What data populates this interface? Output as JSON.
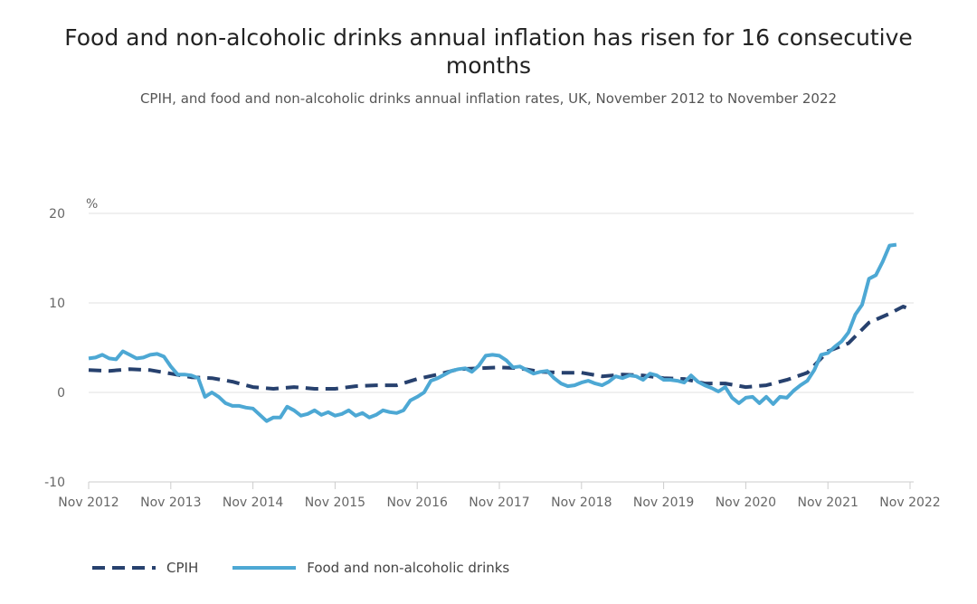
{
  "title": "Food and non-alcoholic drinks annual inflation has risen for 16 consecutive months",
  "subtitle": "CPIH, and food and non-alcoholic drinks annual inflation rates, UK, November 2012 to November 2022",
  "chart_data": {
    "type": "line",
    "y_unit_label": "%",
    "ylim": [
      -10,
      20
    ],
    "y_ticks": [
      "20",
      "10",
      "0",
      "-10"
    ],
    "x_ticks": [
      "Nov 2012",
      "Nov 2013",
      "Nov 2014",
      "Nov 2015",
      "Nov 2016",
      "Nov 2017",
      "Nov 2018",
      "Nov 2019",
      "Nov 2020",
      "Nov 2021",
      "Nov 2022"
    ],
    "x_start": "Nov 2012",
    "x_end": "Nov 2022",
    "grid": true,
    "legend_position": "bottom-left",
    "series": [
      {
        "name": "CPIH",
        "style": "dashed",
        "color": "#27416e",
        "values": [
          [
            0,
            2.5
          ],
          [
            3,
            2.4
          ],
          [
            6,
            2.6
          ],
          [
            9,
            2.5
          ],
          [
            12,
            2.1
          ],
          [
            15,
            1.7
          ],
          [
            18,
            1.6
          ],
          [
            21,
            1.2
          ],
          [
            24,
            0.6
          ],
          [
            27,
            0.4
          ],
          [
            30,
            0.6
          ],
          [
            33,
            0.4
          ],
          [
            36,
            0.4
          ],
          [
            39,
            0.7
          ],
          [
            42,
            0.8
          ],
          [
            45,
            0.8
          ],
          [
            48,
            1.5
          ],
          [
            51,
            2.0
          ],
          [
            54,
            2.6
          ],
          [
            57,
            2.7
          ],
          [
            60,
            2.8
          ],
          [
            63,
            2.7
          ],
          [
            66,
            2.3
          ],
          [
            69,
            2.2
          ],
          [
            72,
            2.2
          ],
          [
            75,
            1.8
          ],
          [
            78,
            2.0
          ],
          [
            81,
            1.9
          ],
          [
            84,
            1.6
          ],
          [
            87,
            1.5
          ],
          [
            90,
            1.0
          ],
          [
            93,
            1.0
          ],
          [
            96,
            0.6
          ],
          [
            99,
            0.8
          ],
          [
            102,
            1.4
          ],
          [
            105,
            2.2
          ],
          [
            108,
            4.6
          ],
          [
            111,
            5.5
          ],
          [
            114,
            7.8
          ],
          [
            117,
            8.8
          ],
          [
            119,
            9.6
          ],
          [
            120,
            9.3
          ]
        ]
      },
      {
        "name": "Food and non-alcoholic drinks",
        "style": "solid",
        "color": "#4da8d4",
        "values": [
          [
            0,
            3.8
          ],
          [
            1,
            3.9
          ],
          [
            2,
            4.2
          ],
          [
            3,
            3.8
          ],
          [
            4,
            3.7
          ],
          [
            5,
            4.6
          ],
          [
            6,
            4.2
          ],
          [
            7,
            3.8
          ],
          [
            8,
            3.9
          ],
          [
            9,
            4.2
          ],
          [
            10,
            4.3
          ],
          [
            11,
            4.0
          ],
          [
            12,
            2.9
          ],
          [
            13,
            2.0
          ],
          [
            14,
            2.0
          ],
          [
            15,
            1.9
          ],
          [
            16,
            1.6
          ],
          [
            17,
            -0.5
          ],
          [
            18,
            0.0
          ],
          [
            19,
            -0.5
          ],
          [
            20,
            -1.2
          ],
          [
            21,
            -1.5
          ],
          [
            22,
            -1.5
          ],
          [
            23,
            -1.7
          ],
          [
            24,
            -1.8
          ],
          [
            25,
            -2.5
          ],
          [
            26,
            -3.2
          ],
          [
            27,
            -2.8
          ],
          [
            28,
            -2.8
          ],
          [
            29,
            -1.6
          ],
          [
            30,
            -2.0
          ],
          [
            31,
            -2.6
          ],
          [
            32,
            -2.4
          ],
          [
            33,
            -2.0
          ],
          [
            34,
            -2.5
          ],
          [
            35,
            -2.2
          ],
          [
            36,
            -2.6
          ],
          [
            37,
            -2.4
          ],
          [
            38,
            -2.0
          ],
          [
            39,
            -2.6
          ],
          [
            40,
            -2.3
          ],
          [
            41,
            -2.8
          ],
          [
            42,
            -2.5
          ],
          [
            43,
            -2.0
          ],
          [
            44,
            -2.2
          ],
          [
            45,
            -2.3
          ],
          [
            46,
            -2.0
          ],
          [
            47,
            -0.9
          ],
          [
            48,
            -0.5
          ],
          [
            49,
            0.0
          ],
          [
            50,
            1.3
          ],
          [
            51,
            1.6
          ],
          [
            52,
            2.0
          ],
          [
            53,
            2.4
          ],
          [
            54,
            2.6
          ],
          [
            55,
            2.7
          ],
          [
            56,
            2.3
          ],
          [
            57,
            3.0
          ],
          [
            58,
            4.1
          ],
          [
            59,
            4.2
          ],
          [
            60,
            4.1
          ],
          [
            61,
            3.6
          ],
          [
            62,
            2.8
          ],
          [
            63,
            2.9
          ],
          [
            64,
            2.5
          ],
          [
            65,
            2.1
          ],
          [
            66,
            2.3
          ],
          [
            67,
            2.4
          ],
          [
            68,
            1.6
          ],
          [
            69,
            1.0
          ],
          [
            70,
            0.7
          ],
          [
            71,
            0.8
          ],
          [
            72,
            1.1
          ],
          [
            73,
            1.3
          ],
          [
            74,
            1.0
          ],
          [
            75,
            0.8
          ],
          [
            76,
            1.2
          ],
          [
            77,
            1.8
          ],
          [
            78,
            1.6
          ],
          [
            79,
            1.9
          ],
          [
            80,
            1.8
          ],
          [
            81,
            1.4
          ],
          [
            82,
            2.1
          ],
          [
            83,
            1.9
          ],
          [
            84,
            1.4
          ],
          [
            85,
            1.4
          ],
          [
            86,
            1.3
          ],
          [
            87,
            1.1
          ],
          [
            88,
            1.9
          ],
          [
            89,
            1.2
          ],
          [
            90,
            0.8
          ],
          [
            91,
            0.5
          ],
          [
            92,
            0.1
          ],
          [
            93,
            0.6
          ],
          [
            94,
            -0.6
          ],
          [
            95,
            -1.2
          ],
          [
            96,
            -0.6
          ],
          [
            97,
            -0.5
          ],
          [
            98,
            -1.2
          ],
          [
            99,
            -0.5
          ],
          [
            100,
            -1.3
          ],
          [
            101,
            -0.5
          ],
          [
            102,
            -0.6
          ],
          [
            103,
            0.2
          ],
          [
            104,
            0.8
          ],
          [
            105,
            1.3
          ],
          [
            106,
            2.5
          ],
          [
            107,
            4.2
          ],
          [
            108,
            4.4
          ],
          [
            109,
            5.1
          ],
          [
            110,
            5.7
          ],
          [
            111,
            6.7
          ],
          [
            112,
            8.7
          ],
          [
            113,
            9.8
          ],
          [
            114,
            12.7
          ],
          [
            115,
            13.1
          ],
          [
            116,
            14.6
          ],
          [
            117,
            16.4
          ],
          [
            118,
            16.5
          ]
        ]
      }
    ]
  }
}
